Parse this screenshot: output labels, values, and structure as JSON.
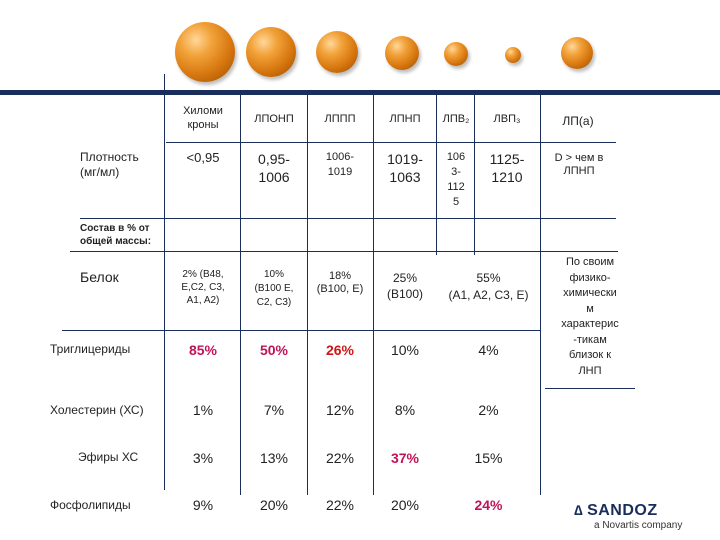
{
  "columns": [
    {
      "header": "Хиломи\nкроны"
    },
    {
      "header": "ЛПОНП"
    },
    {
      "header": "ЛППП"
    },
    {
      "header": "ЛПНП"
    },
    {
      "header": "ЛПВ₂"
    },
    {
      "header": "ЛВП₃"
    },
    {
      "header": "ЛП(а)"
    }
  ],
  "rows": {
    "density": {
      "label": "Плотность\n(мг/мл)",
      "values": [
        "<0,95",
        "0,95-\n1006",
        "1006-\n1019",
        "1019-\n1063",
        "106\n3-\n112\n5",
        "1125-\n1210",
        "D > чем в\nЛПНП"
      ]
    },
    "composition_label": "Состав в % от\nобщей массы:",
    "protein": {
      "label": "Белок",
      "values": [
        "2% (B48,\nE,C2, C3,\nA1, A2)",
        "10%\n(B100 E,\nC2, C3)",
        "18%\n(B100, E)",
        "25%\n(B100)",
        "55%\n(A1, A2, C3, E)"
      ],
      "lpa_note": "По своим\nфизико-\nхимически\nм\nхарактерис\n-тикам\nблизок к\nЛНП"
    },
    "triglycerides": {
      "label": "Триглицериды",
      "values": [
        "85%",
        "50%",
        "26%",
        "10%",
        "4%"
      ]
    },
    "cholesterol": {
      "label": "Холестерин (ХС)",
      "values": [
        "1%",
        "7%",
        "12%",
        "8%",
        "2%"
      ]
    },
    "cholesterol_esters": {
      "label": "Эфиры ХС",
      "values": [
        "3%",
        "13%",
        "22%",
        "37%",
        "15%"
      ]
    },
    "phospholipids": {
      "label": "Фосфолипиды",
      "values": [
        "9%",
        "20%",
        "22%",
        "20%",
        "24%"
      ]
    }
  },
  "logo": {
    "brand": "SANDOZ",
    "sub": "a Novartis company",
    "mark": "∆"
  },
  "colors": {
    "accent_band": "#1a2e5c",
    "highlight_pink": "#c0145a",
    "highlight_red": "#d21414"
  }
}
